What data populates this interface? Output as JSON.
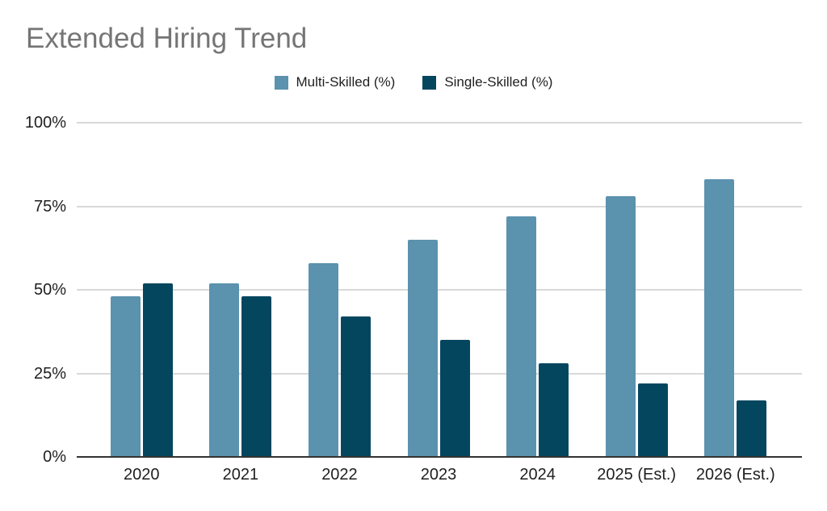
{
  "title": "Extended Hiring Trend",
  "chart_data": {
    "type": "bar",
    "title": "Extended Hiring Trend",
    "categories": [
      "2020",
      "2021",
      "2022",
      "2023",
      "2024",
      "2025 (Est.)",
      "2026 (Est.)"
    ],
    "series": [
      {
        "name": "Multi-Skilled (%)",
        "color": "#5b92ae",
        "values": [
          48,
          52,
          58,
          65,
          72,
          78,
          83
        ]
      },
      {
        "name": "Single-Skilled (%)",
        "color": "#05465f",
        "values": [
          52,
          48,
          42,
          35,
          28,
          22,
          17
        ]
      }
    ],
    "xlabel": "",
    "ylabel": "",
    "ylim": [
      0,
      100
    ],
    "yticks": [
      {
        "label": "100%",
        "value": 100
      },
      {
        "label": "75%",
        "value": 75
      },
      {
        "label": "50%",
        "value": 50
      },
      {
        "label": "25%",
        "value": 25
      },
      {
        "label": "0%",
        "value": 0
      }
    ],
    "grid": true,
    "legend_position": "top-center",
    "colors": {
      "title_text": "#757575",
      "axis_text": "#1f1f1f",
      "gridline": "#d9d9d9",
      "baseline": "#333333",
      "background": "#ffffff"
    }
  }
}
